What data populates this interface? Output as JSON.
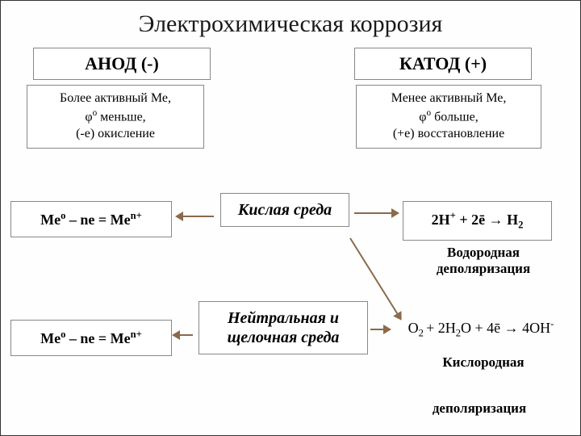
{
  "title": "Электрохимическая коррозия",
  "anode": {
    "header": "АНОД (-)",
    "desc_html": "Более активный Ме,<br>φ<sup>о</sup> меньше,<br>(-е) окисление"
  },
  "cathode": {
    "header": "КАТОД (+)",
    "desc_html": "Менее активный Ме,<br>φ<sup>о</sup> больше,<br>(+е) восстановление"
  },
  "env1": "Кислая среда",
  "env2": "Нейтральная и щелочная среда",
  "eq_anode_html": "Me<sup>o</sup> – ne  =  Me<sup>n+</sup>",
  "eq_cathode1_html": "2H<sup>+</sup> + 2ē → H<sub>2</sub>",
  "eq_cathode2_html": "O<sub>2 </sub>+ 2H<sub>2</sub>O + 4ē → 4OH<sup>-</sup>",
  "depol1": "Водородная деполяризация",
  "depol2_a": "Кислородная",
  "depol2_b": "деполяризация",
  "layout": {
    "title_fontsize": 30,
    "border_color": "#888888",
    "arrow_color": "#8a6a4a",
    "bg": "#fefefe"
  }
}
